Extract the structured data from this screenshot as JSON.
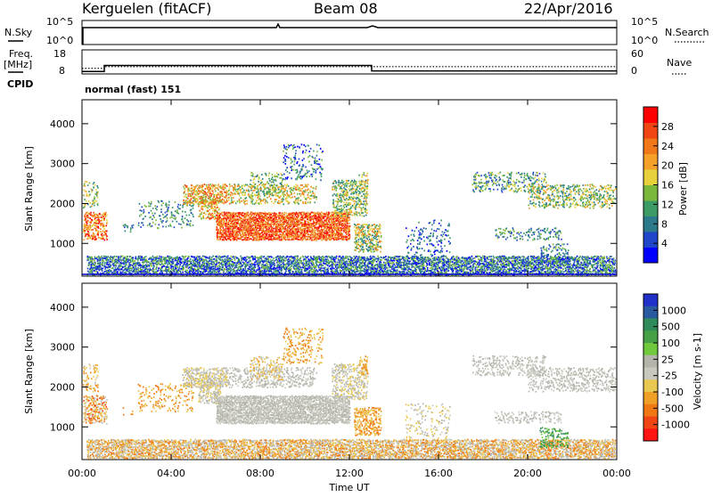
{
  "header": {
    "station": "Kerguelen (fitACF)",
    "beam": "Beam 08",
    "date": "22/Apr/2016"
  },
  "chart_data": [
    {
      "type": "line",
      "panel": "noise",
      "left_label": "N.Sky",
      "right_label": "N.Search",
      "left_ticks": [
        "10^5",
        "10^0"
      ],
      "right_ticks": [
        "10^5",
        "10^0"
      ],
      "n_sky_segments": [
        {
          "x0": 0.0,
          "x1": 0.15,
          "level": "10^0"
        },
        {
          "x0": 0.15,
          "x1": 24.0,
          "level": "near 10^5"
        }
      ]
    },
    {
      "type": "line",
      "panel": "frequency",
      "left_label_1": "Freq.",
      "left_label_2": "[MHz]",
      "right_label": "Nave",
      "left_ticks": [
        "18",
        "8"
      ],
      "right_ticks": [
        "60",
        "0"
      ],
      "freq_mhz": [
        {
          "x0": 0.0,
          "x1": 1.0,
          "value": 9.5
        },
        {
          "x0": 1.0,
          "x1": 13.0,
          "value": 13.0
        },
        {
          "x0": 13.0,
          "x1": 24.0,
          "value": 9.8
        }
      ],
      "nave": [
        {
          "x0": 0.0,
          "x1": 1.0,
          "value": 20
        },
        {
          "x0": 1.0,
          "x1": 24.0,
          "value": 26
        }
      ]
    },
    {
      "type": "heatmap",
      "panel": "power",
      "cpid_label": "CPID",
      "cpid_text": "normal (fast) 151",
      "ylabel": "Slant Range [km]",
      "yticks": [
        "1000",
        "2000",
        "3000",
        "4000"
      ],
      "ylim": [
        180,
        4600
      ],
      "xlim": [
        0,
        24
      ],
      "colorbar_label": "Power [dB]",
      "colorbar_ticks": [
        "4",
        "8",
        "12",
        "16",
        "20",
        "24",
        "28"
      ],
      "colorbar_colors": [
        "#0000ff",
        "#1f46c8",
        "#2a7a8c",
        "#3c9a64",
        "#7ab83c",
        "#e8d23c",
        "#f5a028",
        "#f07818",
        "#f04614",
        "#ff0000"
      ]
    },
    {
      "type": "heatmap",
      "panel": "velocity",
      "ylabel": "Slant Range [km]",
      "yticks": [
        "1000",
        "2000",
        "3000",
        "4000"
      ],
      "ylim": [
        180,
        4600
      ],
      "xlim": [
        0,
        24
      ],
      "xlabel": "Time UT",
      "xticks": [
        "00:00",
        "04:00",
        "08:00",
        "12:00",
        "16:00",
        "20:00",
        "00:00"
      ],
      "colorbar_label": "Velocity [m s-1]",
      "colorbar_ticks": [
        "1000",
        "500",
        "100",
        "25",
        "-25",
        "-100",
        "-500",
        "-1000"
      ],
      "colorbar_colors": [
        "#2030c8",
        "#285aa0",
        "#2f8c5a",
        "#46a046",
        "#70c83c",
        "#b4b4aa",
        "#c8c8be",
        "#e8c850",
        "#f0a028",
        "#f07814",
        "#f04614",
        "#ff1414"
      ]
    }
  ]
}
